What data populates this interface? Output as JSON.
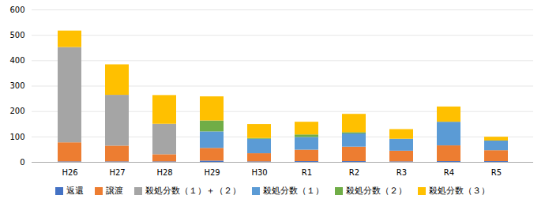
{
  "chart_data": {
    "type": "bar",
    "stacked": true,
    "categories": [
      "H26",
      "H27",
      "H28",
      "H29",
      "H30",
      "R1",
      "R2",
      "R3",
      "R4",
      "R5"
    ],
    "series": [
      {
        "name": "返還",
        "color": "#4472c4",
        "values": [
          2,
          2,
          2,
          5,
          2,
          3,
          3,
          2,
          3,
          3
        ]
      },
      {
        "name": "譲渡",
        "color": "#ed7d31",
        "values": [
          75,
          62,
          28,
          50,
          32,
          45,
          57,
          42,
          62,
          43
        ]
      },
      {
        "name": "殺処分数（１）＋（２）",
        "color": "#a5a5a5",
        "values": [
          375,
          200,
          120,
          0,
          0,
          0,
          0,
          0,
          0,
          0
        ]
      },
      {
        "name": "殺処分数（１）",
        "color": "#5b9bd5",
        "values": [
          0,
          0,
          0,
          65,
          57,
          50,
          52,
          47,
          93,
          38
        ]
      },
      {
        "name": "殺処分数（２）",
        "color": "#70ad47",
        "values": [
          0,
          0,
          0,
          43,
          3,
          10,
          5,
          0,
          0,
          0
        ]
      },
      {
        "name": "殺処分数（３）",
        "color": "#ffc000",
        "values": [
          65,
          120,
          113,
          95,
          55,
          50,
          72,
          38,
          60,
          15
        ]
      }
    ],
    "ylim": [
      0,
      600
    ],
    "yticks": [
      0,
      100,
      200,
      300,
      400,
      500,
      600
    ],
    "grid": true,
    "legend": "bottom"
  }
}
